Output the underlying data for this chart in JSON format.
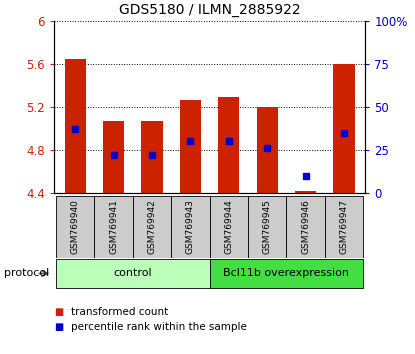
{
  "title": "GDS5180 / ILMN_2885922",
  "samples": [
    "GSM769940",
    "GSM769941",
    "GSM769942",
    "GSM769943",
    "GSM769944",
    "GSM769945",
    "GSM769946",
    "GSM769947"
  ],
  "bar_bottom": 4.4,
  "bar_top": [
    5.65,
    5.07,
    5.07,
    5.27,
    5.29,
    5.2,
    4.42,
    5.6
  ],
  "percentile_rank": [
    37,
    22,
    22,
    30,
    30,
    26,
    10,
    35
  ],
  "ylim_left": [
    4.4,
    6.0
  ],
  "ylim_right": [
    0,
    100
  ],
  "yticks_left": [
    4.4,
    4.8,
    5.2,
    5.6,
    6.0
  ],
  "yticks_right": [
    0,
    25,
    50,
    75,
    100
  ],
  "ytick_labels_left": [
    "4.4",
    "4.8",
    "5.2",
    "5.6",
    "6"
  ],
  "ytick_labels_right": [
    "0",
    "25",
    "50",
    "75",
    "100%"
  ],
  "bar_color": "#cc2200",
  "dot_color": "#0000cc",
  "groups": [
    {
      "label": "control",
      "start": 0,
      "end": 3,
      "color": "#bbffbb"
    },
    {
      "label": "Bcl11b overexpression",
      "start": 4,
      "end": 7,
      "color": "#44dd44"
    }
  ],
  "protocol_label": "protocol",
  "legend_items": [
    {
      "label": "transformed count",
      "color": "#cc2200"
    },
    {
      "label": "percentile rank within the sample",
      "color": "#0000cc"
    }
  ],
  "tick_label_area_bg": "#cccccc",
  "title_fontsize": 10
}
